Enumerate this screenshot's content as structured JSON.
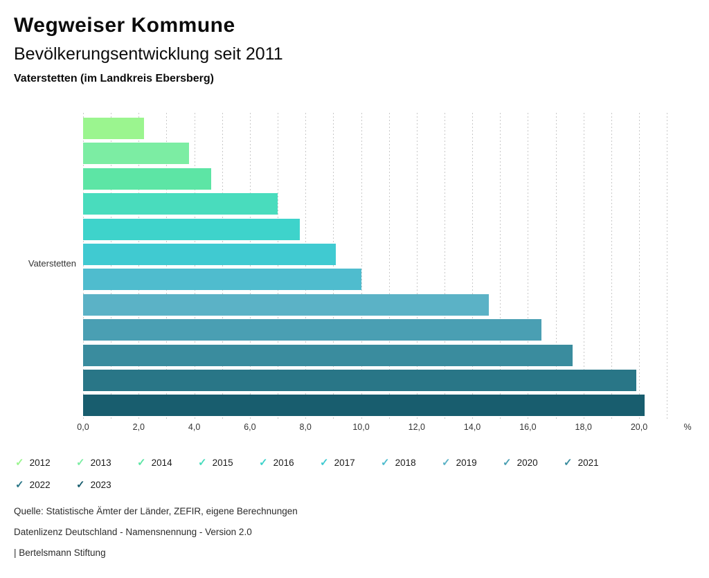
{
  "header": {
    "title": "Wegweiser Kommune",
    "subtitle": "Bevölkerungsentwicklung seit 2011",
    "location": "Vaterstetten (im Landkreis Ebersberg)"
  },
  "chart_data": {
    "type": "bar",
    "orientation": "horizontal",
    "title": "Bevölkerungsentwicklung seit 2011",
    "subtitle": "Vaterstetten (im Landkreis Ebersberg)",
    "group_label": "Vaterstetten",
    "categories": [
      "2012",
      "2013",
      "2014",
      "2015",
      "2016",
      "2017",
      "2018",
      "2019",
      "2020",
      "2021",
      "2022",
      "2023"
    ],
    "values": [
      2.2,
      3.8,
      4.6,
      7.0,
      7.8,
      9.1,
      10.0,
      14.6,
      16.5,
      17.6,
      19.9,
      20.2
    ],
    "colors": [
      "#9bf58f",
      "#7ceda3",
      "#5de5a5",
      "#49dcbd",
      "#3ed3cb",
      "#40cad1",
      "#4fbcce",
      "#5bb2c6",
      "#4a9fb3",
      "#3a8c9e",
      "#297687",
      "#185d6e"
    ],
    "xlabel_unit": "%",
    "x_ticks": [
      "0,0",
      "2,0",
      "4,0",
      "6,0",
      "8,0",
      "10,0",
      "12,0",
      "14,0",
      "16,0",
      "18,0",
      "20,0"
    ],
    "x_tick_values": [
      0,
      2,
      4,
      6,
      8,
      10,
      12,
      14,
      16,
      18,
      20
    ],
    "xlim": [
      0,
      21
    ],
    "gridline_interval": 1.0,
    "gridline_color": "#c8c8c8",
    "grid": "dotted-vertical",
    "legend_position": "bottom"
  },
  "legend": {
    "items": [
      {
        "label": "2012",
        "color": "#9bf58f"
      },
      {
        "label": "2013",
        "color": "#7ceda3"
      },
      {
        "label": "2014",
        "color": "#5de5a5"
      },
      {
        "label": "2015",
        "color": "#49dcbd"
      },
      {
        "label": "2016",
        "color": "#3ed3cb"
      },
      {
        "label": "2017",
        "color": "#40cad1"
      },
      {
        "label": "2018",
        "color": "#4fbcce"
      },
      {
        "label": "2019",
        "color": "#5bb2c6"
      },
      {
        "label": "2020",
        "color": "#4a9fb3"
      },
      {
        "label": "2021",
        "color": "#3a8c9e"
      },
      {
        "label": "2022",
        "color": "#297687"
      },
      {
        "label": "2023",
        "color": "#185d6e"
      }
    ],
    "check_icon": "✓"
  },
  "footer": {
    "source": "Quelle: Statistische Ämter der Länder, ZEFIR, eigene Berechnungen",
    "license": "Datenlizenz Deutschland - Namensnennung - Version 2.0",
    "attribution": "| Bertelsmann Stiftung"
  }
}
